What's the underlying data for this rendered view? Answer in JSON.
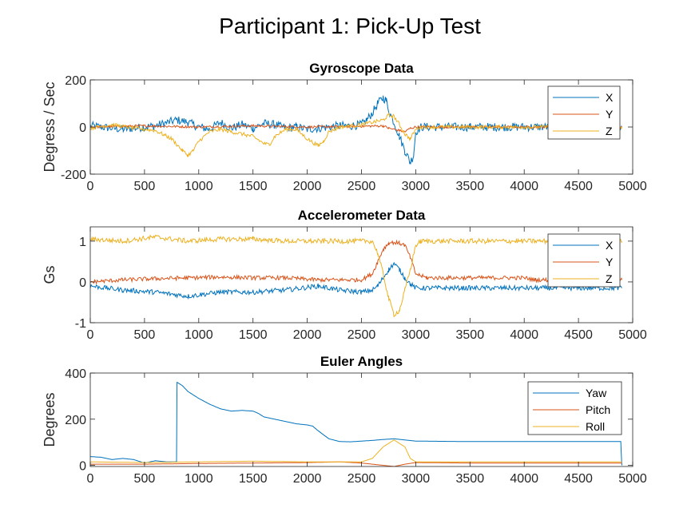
{
  "figure_title": "Participant 1: Pick-Up Test",
  "colors": {
    "X": "#0072BD",
    "Y": "#D95319",
    "Z": "#EDB120",
    "axis": "#262626"
  },
  "chart_data": [
    {
      "type": "line",
      "title": "Gyroscope Data",
      "ylabel": "Degress / Sec",
      "xlabel": "",
      "xlim": [
        0,
        5000
      ],
      "ylim": [
        -200,
        200
      ],
      "xticks": [
        0,
        500,
        1000,
        1500,
        2000,
        2500,
        3000,
        3500,
        4000,
        4500,
        5000
      ],
      "yticks": [
        -200,
        0,
        200
      ],
      "legend_position": "top-right",
      "series": [
        {
          "name": "X",
          "color": "#0072BD",
          "noise": 18,
          "points": [
            [
              0,
              5
            ],
            [
              300,
              -10
            ],
            [
              600,
              5
            ],
            [
              800,
              30
            ],
            [
              900,
              20
            ],
            [
              1000,
              0
            ],
            [
              1100,
              -10
            ],
            [
              1200,
              20
            ],
            [
              1300,
              -5
            ],
            [
              1400,
              10
            ],
            [
              1500,
              -5
            ],
            [
              1600,
              15
            ],
            [
              1700,
              10
            ],
            [
              1800,
              -5
            ],
            [
              1900,
              0
            ],
            [
              2000,
              -10
            ],
            [
              2100,
              -5
            ],
            [
              2200,
              0
            ],
            [
              2300,
              5
            ],
            [
              2400,
              5
            ],
            [
              2500,
              10
            ],
            [
              2550,
              30
            ],
            [
              2600,
              60
            ],
            [
              2650,
              100
            ],
            [
              2700,
              125
            ],
            [
              2730,
              110
            ],
            [
              2760,
              60
            ],
            [
              2800,
              20
            ],
            [
              2850,
              -40
            ],
            [
              2900,
              -100
            ],
            [
              2950,
              -150
            ],
            [
              2980,
              -120
            ],
            [
              3000,
              -20
            ],
            [
              3050,
              0
            ],
            [
              3500,
              0
            ],
            [
              4000,
              0
            ],
            [
              4500,
              0
            ],
            [
              4900,
              0
            ]
          ]
        },
        {
          "name": "Y",
          "color": "#D95319",
          "noise": 5,
          "points": [
            [
              0,
              0
            ],
            [
              500,
              5
            ],
            [
              1000,
              0
            ],
            [
              1500,
              5
            ],
            [
              2000,
              0
            ],
            [
              2500,
              3
            ],
            [
              2700,
              5
            ],
            [
              2750,
              -5
            ],
            [
              2800,
              -10
            ],
            [
              2850,
              -15
            ],
            [
              2900,
              -20
            ],
            [
              2950,
              -5
            ],
            [
              3000,
              0
            ],
            [
              4000,
              0
            ],
            [
              4900,
              0
            ]
          ]
        },
        {
          "name": "Z",
          "color": "#EDB120",
          "noise": 8,
          "points": [
            [
              0,
              -5
            ],
            [
              200,
              10
            ],
            [
              400,
              -5
            ],
            [
              600,
              -15
            ],
            [
              750,
              -50
            ],
            [
              850,
              -100
            ],
            [
              900,
              -120
            ],
            [
              950,
              -100
            ],
            [
              1000,
              -60
            ],
            [
              1100,
              -20
            ],
            [
              1200,
              -10
            ],
            [
              1300,
              -20
            ],
            [
              1400,
              -30
            ],
            [
              1500,
              -40
            ],
            [
              1600,
              -70
            ],
            [
              1650,
              -75
            ],
            [
              1700,
              -40
            ],
            [
              1800,
              -10
            ],
            [
              1900,
              -10
            ],
            [
              2000,
              -50
            ],
            [
              2100,
              -80
            ],
            [
              2150,
              -60
            ],
            [
              2200,
              -20
            ],
            [
              2300,
              0
            ],
            [
              2400,
              5
            ],
            [
              2500,
              10
            ],
            [
              2600,
              20
            ],
            [
              2700,
              30
            ],
            [
              2750,
              50
            ],
            [
              2800,
              45
            ],
            [
              2850,
              10
            ],
            [
              2900,
              -30
            ],
            [
              2950,
              -50
            ],
            [
              3000,
              -10
            ],
            [
              3050,
              0
            ],
            [
              3500,
              0
            ],
            [
              4000,
              0
            ],
            [
              4900,
              0
            ]
          ]
        }
      ]
    },
    {
      "type": "line",
      "title": "Accelerometer Data",
      "ylabel": "Gs",
      "xlabel": "",
      "xlim": [
        0,
        5000
      ],
      "ylim": [
        -1,
        1.35
      ],
      "xticks": [
        0,
        500,
        1000,
        1500,
        2000,
        2500,
        3000,
        3500,
        4000,
        4500,
        5000
      ],
      "yticks": [
        -1,
        0,
        1
      ],
      "legend_position": "top-right",
      "series": [
        {
          "name": "X",
          "color": "#0072BD",
          "noise": 0.06,
          "points": [
            [
              0,
              -0.1
            ],
            [
              300,
              -0.2
            ],
            [
              600,
              -0.25
            ],
            [
              900,
              -0.35
            ],
            [
              1200,
              -0.25
            ],
            [
              1500,
              -0.25
            ],
            [
              1800,
              -0.2
            ],
            [
              2100,
              -0.1
            ],
            [
              2300,
              -0.2
            ],
            [
              2500,
              -0.25
            ],
            [
              2600,
              -0.2
            ],
            [
              2650,
              -0.1
            ],
            [
              2700,
              0.1
            ],
            [
              2750,
              0.3
            ],
            [
              2800,
              0.45
            ],
            [
              2850,
              0.3
            ],
            [
              2900,
              0.1
            ],
            [
              2950,
              -0.05
            ],
            [
              3000,
              -0.15
            ],
            [
              3100,
              -0.15
            ],
            [
              4000,
              -0.15
            ],
            [
              4900,
              -0.15
            ]
          ]
        },
        {
          "name": "Y",
          "color": "#D95319",
          "noise": 0.05,
          "points": [
            [
              0,
              0
            ],
            [
              300,
              0.05
            ],
            [
              600,
              0.08
            ],
            [
              900,
              0.1
            ],
            [
              1200,
              0.12
            ],
            [
              1500,
              0.1
            ],
            [
              1800,
              0.1
            ],
            [
              2100,
              0.05
            ],
            [
              2400,
              0.05
            ],
            [
              2500,
              0.05
            ],
            [
              2600,
              0.2
            ],
            [
              2650,
              0.5
            ],
            [
              2700,
              0.8
            ],
            [
              2750,
              0.95
            ],
            [
              2800,
              0.97
            ],
            [
              2850,
              0.95
            ],
            [
              2900,
              0.9
            ],
            [
              2950,
              0.6
            ],
            [
              3000,
              0.2
            ],
            [
              3100,
              0.1
            ],
            [
              4000,
              0.1
            ],
            [
              4100,
              0.05
            ],
            [
              4900,
              0.05
            ]
          ]
        },
        {
          "name": "Z",
          "color": "#EDB120",
          "noise": 0.06,
          "points": [
            [
              0,
              1.05
            ],
            [
              300,
              1.0
            ],
            [
              600,
              1.1
            ],
            [
              900,
              1.0
            ],
            [
              1200,
              1.05
            ],
            [
              1500,
              1.05
            ],
            [
              1800,
              1.0
            ],
            [
              2100,
              1.0
            ],
            [
              2400,
              1.0
            ],
            [
              2600,
              1.0
            ],
            [
              2650,
              0.7
            ],
            [
              2700,
              0.2
            ],
            [
              2750,
              -0.4
            ],
            [
              2800,
              -0.8
            ],
            [
              2850,
              -0.7
            ],
            [
              2900,
              -0.2
            ],
            [
              2950,
              0.3
            ],
            [
              3000,
              0.9
            ],
            [
              3050,
              1.0
            ],
            [
              4000,
              1.0
            ],
            [
              4900,
              1.0
            ]
          ]
        }
      ]
    },
    {
      "type": "line",
      "title": "Euler Angles",
      "ylabel": "Degrees",
      "xlabel": "",
      "xlim": [
        0,
        5000
      ],
      "ylim": [
        -5,
        400
      ],
      "xticks": [
        0,
        500,
        1000,
        1500,
        2000,
        2500,
        3000,
        3500,
        4000,
        4500,
        5000
      ],
      "yticks": [
        0,
        200,
        400
      ],
      "legend_position": "top-right",
      "series": [
        {
          "name": "Yaw",
          "color": "#0072BD",
          "noise": 0,
          "points": [
            [
              0,
              38
            ],
            [
              100,
              35
            ],
            [
              200,
              25
            ],
            [
              300,
              30
            ],
            [
              400,
              25
            ],
            [
              500,
              10
            ],
            [
              600,
              20
            ],
            [
              700,
              15
            ],
            [
              795,
              15
            ],
            [
              800,
              360
            ],
            [
              850,
              345
            ],
            [
              900,
              320
            ],
            [
              1000,
              290
            ],
            [
              1100,
              265
            ],
            [
              1200,
              245
            ],
            [
              1300,
              235
            ],
            [
              1400,
              238
            ],
            [
              1500,
              235
            ],
            [
              1550,
              225
            ],
            [
              1600,
              210
            ],
            [
              1700,
              200
            ],
            [
              1800,
              190
            ],
            [
              1900,
              180
            ],
            [
              2000,
              175
            ],
            [
              2050,
              170
            ],
            [
              2100,
              150
            ],
            [
              2200,
              115
            ],
            [
              2300,
              103
            ],
            [
              2400,
              102
            ],
            [
              2500,
              105
            ],
            [
              2600,
              108
            ],
            [
              2700,
              112
            ],
            [
              2800,
              115
            ],
            [
              2900,
              110
            ],
            [
              3000,
              105
            ],
            [
              3500,
              103
            ],
            [
              4000,
              103
            ],
            [
              4500,
              103
            ],
            [
              4890,
              103
            ],
            [
              4900,
              0
            ]
          ]
        },
        {
          "name": "Pitch",
          "color": "#D95319",
          "noise": 0,
          "points": [
            [
              0,
              5
            ],
            [
              500,
              5
            ],
            [
              1000,
              8
            ],
            [
              1500,
              10
            ],
            [
              2000,
              12
            ],
            [
              2300,
              15
            ],
            [
              2500,
              10
            ],
            [
              2600,
              5
            ],
            [
              2700,
              0
            ],
            [
              2800,
              -5
            ],
            [
              2900,
              5
            ],
            [
              3000,
              12
            ],
            [
              3500,
              10
            ],
            [
              4000,
              10
            ],
            [
              4900,
              10
            ]
          ]
        },
        {
          "name": "Roll",
          "color": "#EDB120",
          "noise": 0,
          "points": [
            [
              0,
              15
            ],
            [
              500,
              12
            ],
            [
              1000,
              15
            ],
            [
              1500,
              18
            ],
            [
              2000,
              15
            ],
            [
              2500,
              15
            ],
            [
              2600,
              30
            ],
            [
              2700,
              80
            ],
            [
              2800,
              110
            ],
            [
              2900,
              80
            ],
            [
              2950,
              30
            ],
            [
              3000,
              15
            ],
            [
              4000,
              15
            ],
            [
              4900,
              15
            ]
          ]
        }
      ]
    }
  ]
}
